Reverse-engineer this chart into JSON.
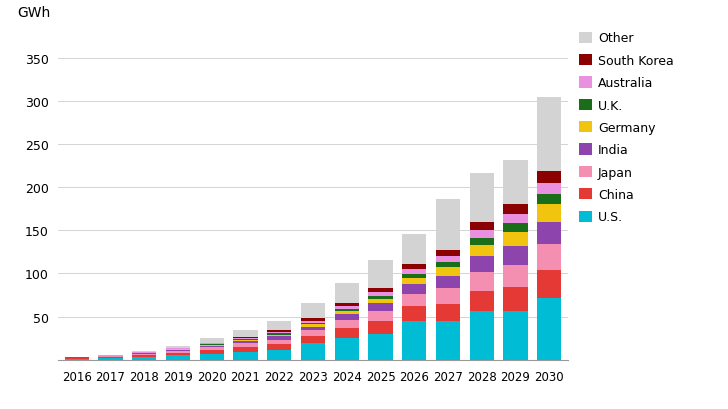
{
  "years": [
    2016,
    2017,
    2018,
    2019,
    2020,
    2021,
    2022,
    2023,
    2024,
    2025,
    2026,
    2027,
    2028,
    2029,
    2030
  ],
  "series": {
    "U.S.": [
      1.5,
      2.0,
      3.5,
      5.0,
      7.0,
      9.0,
      11.0,
      19.0,
      25.0,
      30.0,
      45.0,
      45.0,
      57.0,
      57.0,
      72.0
    ],
    "China": [
      0.5,
      1.0,
      2.0,
      3.0,
      4.5,
      5.5,
      7.0,
      8.0,
      12.0,
      15.0,
      17.0,
      20.0,
      23.0,
      27.0,
      32.0
    ],
    "Japan": [
      0.5,
      1.0,
      1.5,
      2.5,
      3.5,
      4.5,
      5.5,
      7.0,
      9.0,
      12.0,
      14.0,
      18.0,
      22.0,
      26.0,
      30.0
    ],
    "India": [
      0.2,
      0.3,
      0.5,
      1.0,
      1.5,
      2.5,
      3.5,
      4.5,
      6.5,
      9.0,
      12.0,
      14.0,
      18.0,
      22.0,
      26.0
    ],
    "Germany": [
      0.2,
      0.3,
      0.5,
      0.7,
      1.0,
      1.5,
      2.0,
      2.5,
      3.5,
      5.0,
      7.0,
      10.0,
      13.0,
      16.0,
      20.0
    ],
    "U.K.": [
      0.1,
      0.2,
      0.3,
      0.5,
      0.7,
      1.0,
      1.5,
      2.0,
      2.5,
      3.0,
      4.5,
      6.0,
      8.0,
      10.0,
      12.0
    ],
    "Australia": [
      0.1,
      0.2,
      0.3,
      0.5,
      0.8,
      1.2,
      1.8,
      2.5,
      3.5,
      4.5,
      5.5,
      7.0,
      9.0,
      11.0,
      13.0
    ],
    "South Korea": [
      0.1,
      0.2,
      0.3,
      0.5,
      0.8,
      1.2,
      1.8,
      2.5,
      3.5,
      4.5,
      6.0,
      7.5,
      9.5,
      12.0,
      14.0
    ],
    "Other": [
      0.3,
      0.8,
      1.6,
      2.3,
      5.2,
      8.1,
      11.4,
      18.0,
      24.0,
      33.0,
      35.0,
      58.5,
      56.5,
      50.0,
      86.0
    ]
  },
  "colors": {
    "U.S.": "#00bcd4",
    "China": "#e53935",
    "Japan": "#f48fb1",
    "India": "#8e44ad",
    "Germany": "#f1c40f",
    "U.K.": "#1a6e1a",
    "Australia": "#e991e0",
    "South Korea": "#8b0000",
    "Other": "#d3d3d3"
  },
  "ylim": [
    0,
    380
  ],
  "yticks": [
    0,
    50,
    100,
    150,
    200,
    250,
    300,
    350
  ],
  "ylabel": "GWh",
  "background_color": "#ffffff",
  "draw_order": [
    "U.S.",
    "China",
    "Japan",
    "India",
    "Germany",
    "U.K.",
    "Australia",
    "South Korea",
    "Other"
  ],
  "legend_order": [
    "Other",
    "South Korea",
    "Australia",
    "U.K.",
    "Germany",
    "India",
    "Japan",
    "China",
    "U.S."
  ]
}
